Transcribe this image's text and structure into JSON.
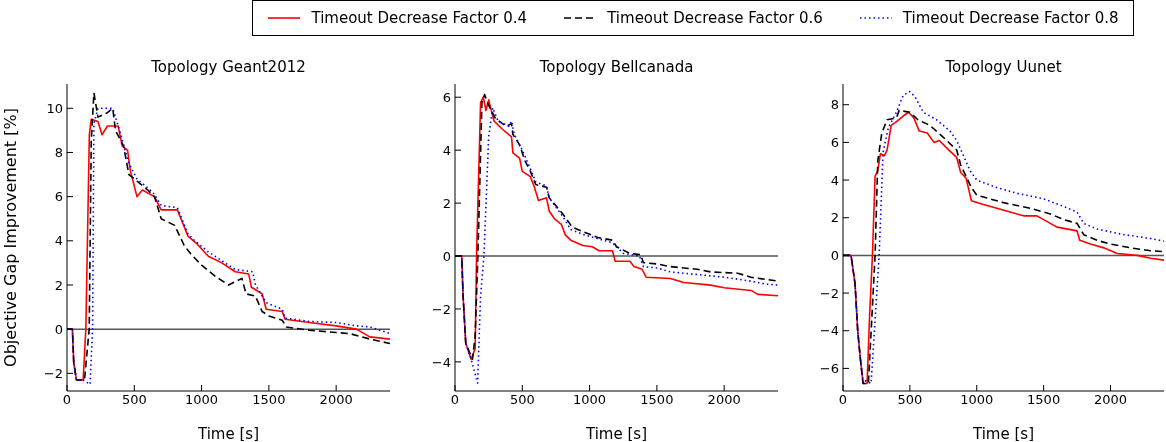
{
  "chart_data": [
    {
      "type": "line",
      "title": "Topology Geant2012",
      "xlabel": "Time [s]",
      "ylabel": "Objective Gap Improvement [%]",
      "xlim": [
        0,
        2400
      ],
      "xticks": [
        0,
        500,
        1000,
        1500,
        2000
      ],
      "ylim": [
        -2.8,
        11.1
      ],
      "yticks": [
        -2,
        0,
        2,
        4,
        6,
        8,
        10
      ],
      "legend": "top",
      "marker": "none",
      "ref_lines": [
        {
          "axis": "y",
          "value": 0,
          "color": "#555555"
        }
      ],
      "series": [
        {
          "name": "Timeout Decrease Factor 0.4",
          "color": "#ff0000",
          "line_style": "solid",
          "x": [
            0,
            40,
            50,
            70,
            120,
            140,
            166,
            180,
            230,
            260,
            300,
            380,
            410,
            450,
            470,
            520,
            560,
            650,
            700,
            820,
            900,
            960,
            1050,
            1150,
            1250,
            1350,
            1370,
            1450,
            1480,
            1600,
            1620,
            1800,
            2000,
            2150,
            2250,
            2400
          ],
          "values": [
            0,
            0,
            -1.5,
            -2.3,
            -2.3,
            0,
            8.8,
            9.5,
            9.4,
            8.8,
            9.2,
            9.2,
            8.3,
            8.1,
            7.2,
            6.0,
            6.3,
            6.0,
            5.4,
            5.4,
            4.2,
            3.9,
            3.3,
            3.0,
            2.6,
            2.5,
            1.9,
            1.6,
            0.9,
            0.8,
            0.45,
            0.3,
            0.15,
            0.0,
            -0.35,
            -0.45
          ]
        },
        {
          "name": "Timeout Decrease Factor 0.6",
          "color": "#000000",
          "line_style": "dashed",
          "x": [
            0,
            40,
            50,
            70,
            130,
            165,
            180,
            200,
            230,
            300,
            340,
            360,
            420,
            460,
            520,
            600,
            650,
            700,
            800,
            870,
            920,
            1000,
            1100,
            1200,
            1300,
            1330,
            1400,
            1450,
            1500,
            1600,
            1630,
            1800,
            2000,
            2100,
            2250,
            2400
          ],
          "values": [
            0,
            0,
            -1.5,
            -2.3,
            -2.3,
            0,
            8.5,
            10.7,
            9.6,
            9.8,
            10.0,
            9.0,
            8.3,
            7.0,
            6.7,
            6.3,
            6.0,
            5.0,
            4.7,
            3.8,
            3.4,
            2.9,
            2.4,
            2.0,
            2.3,
            1.6,
            1.5,
            0.8,
            0.6,
            0.4,
            0.1,
            -0.05,
            -0.15,
            -0.2,
            -0.45,
            -0.65
          ]
        },
        {
          "name": "Timeout Decrease Factor 0.8",
          "color": "#0000ff",
          "line_style": "dotted",
          "x": [
            0,
            40,
            50,
            70,
            120,
            171,
            190,
            200,
            230,
            340,
            400,
            460,
            520,
            600,
            650,
            700,
            820,
            900,
            950,
            1050,
            1150,
            1250,
            1380,
            1400,
            1480,
            1600,
            1620,
            1800,
            2000,
            2150,
            2250,
            2400
          ],
          "values": [
            0,
            0,
            -1.5,
            -2.3,
            -2.3,
            -2.5,
            0,
            9.3,
            10.0,
            10.0,
            8.8,
            7.5,
            6.8,
            6.4,
            6.1,
            5.6,
            5.5,
            4.3,
            4.0,
            3.5,
            3.1,
            2.7,
            2.6,
            2.0,
            1.2,
            0.9,
            0.5,
            0.35,
            0.3,
            0.15,
            0.1,
            -0.2
          ]
        }
      ]
    },
    {
      "type": "line",
      "title": "Topology Bellcanada",
      "xlabel": "Time [s]",
      "xlim": [
        0,
        2400
      ],
      "xticks": [
        0,
        500,
        1000,
        1500,
        2000
      ],
      "ylim": [
        -5.1,
        6.5
      ],
      "yticks": [
        -4,
        -2,
        0,
        2,
        4,
        6
      ],
      "marker": "none",
      "ref_lines": [
        {
          "axis": "y",
          "value": 0,
          "color": "#555555"
        }
      ],
      "series": [
        {
          "color": "#ff0000",
          "line_style": "solid",
          "x": [
            0,
            50,
            60,
            80,
            120,
            150,
            160,
            190,
            210,
            230,
            250,
            290,
            350,
            420,
            430,
            480,
            500,
            560,
            590,
            620,
            680,
            700,
            740,
            790,
            820,
            860,
            950,
            1020,
            1070,
            1170,
            1190,
            1300,
            1330,
            1390,
            1420,
            1600,
            1700,
            1900,
            2000,
            2200,
            2250,
            2400
          ],
          "values": [
            0,
            0,
            -1.5,
            -3.3,
            -3.9,
            -3.5,
            0,
            5.8,
            6.0,
            5.5,
            5.9,
            5.1,
            4.8,
            4.5,
            3.9,
            3.7,
            3.2,
            3.0,
            2.6,
            2.1,
            2.2,
            1.7,
            1.4,
            1.2,
            0.8,
            0.6,
            0.4,
            0.35,
            0.2,
            0.2,
            -0.2,
            -0.2,
            -0.4,
            -0.5,
            -0.8,
            -0.85,
            -1.0,
            -1.1,
            -1.2,
            -1.3,
            -1.45,
            -1.5
          ]
        },
        {
          "color": "#000000",
          "line_style": "dashed",
          "x": [
            0,
            50,
            60,
            80,
            130,
            150,
            170,
            200,
            220,
            240,
            300,
            380,
            420,
            430,
            480,
            520,
            560,
            600,
            680,
            700,
            800,
            870,
            960,
            1060,
            1170,
            1200,
            1300,
            1380,
            1400,
            1500,
            1600,
            1800,
            1900,
            2100,
            2200,
            2400
          ],
          "values": [
            0,
            0,
            -1.5,
            -3.3,
            -3.9,
            -3.0,
            0,
            5.8,
            6.1,
            5.8,
            5.2,
            4.9,
            5.0,
            4.6,
            4.2,
            3.6,
            3.2,
            2.7,
            2.6,
            2.2,
            1.6,
            1.1,
            0.9,
            0.7,
            0.6,
            0.35,
            0.1,
            0.05,
            -0.25,
            -0.3,
            -0.4,
            -0.5,
            -0.6,
            -0.65,
            -0.8,
            -0.95
          ]
        },
        {
          "color": "#0000ff",
          "line_style": "dotted",
          "x": [
            0,
            50,
            60,
            80,
            120,
            168,
            190,
            215,
            250,
            280,
            320,
            400,
            420,
            440,
            500,
            560,
            600,
            680,
            700,
            800,
            860,
            960,
            1100,
            1170,
            1250,
            1370,
            1400,
            1500,
            1600,
            1800,
            2000,
            2200,
            2300,
            2400
          ],
          "values": [
            0,
            0,
            -1.5,
            -3.3,
            -3.9,
            -4.8,
            -1.5,
            0,
            4.5,
            5.6,
            5.1,
            4.9,
            5.1,
            4.6,
            4.0,
            3.3,
            2.8,
            2.65,
            2.2,
            1.5,
            1.0,
            0.8,
            0.6,
            0.5,
            0.1,
            0.0,
            -0.4,
            -0.45,
            -0.6,
            -0.7,
            -0.8,
            -0.95,
            -1.05,
            -1.1
          ]
        }
      ]
    },
    {
      "type": "line",
      "title": "Topology Uunet",
      "xlabel": "Time [s]",
      "xlim": [
        0,
        2400
      ],
      "xticks": [
        0,
        500,
        1000,
        1500,
        2000
      ],
      "ylim": [
        -7.2,
        9.1
      ],
      "yticks": [
        -6,
        -4,
        -2,
        0,
        2,
        4,
        6,
        8
      ],
      "marker": "none",
      "ref_lines": [
        {
          "axis": "y",
          "value": 0,
          "color": "#555555"
        }
      ],
      "series": [
        {
          "color": "#ff0000",
          "line_style": "solid",
          "x": [
            0,
            60,
            90,
            110,
            130,
            150,
            180,
            200,
            220,
            240,
            260,
            280,
            310,
            330,
            360,
            400,
            450,
            490,
            530,
            570,
            630,
            680,
            720,
            790,
            850,
            880,
            920,
            960,
            1050,
            1150,
            1250,
            1350,
            1450,
            1550,
            1600,
            1750,
            1770,
            1850,
            1950,
            2050,
            2200,
            2300,
            2400
          ],
          "values": [
            0,
            0,
            -1.5,
            -4,
            -5.5,
            -6.8,
            -6.8,
            -3,
            0,
            4.2,
            4.5,
            5.4,
            5.3,
            5.6,
            6.9,
            7.1,
            7.4,
            7.6,
            7.3,
            6.6,
            6.5,
            6.0,
            6.1,
            5.6,
            5.2,
            4.4,
            4.1,
            2.9,
            2.7,
            2.5,
            2.3,
            2.1,
            2.1,
            1.7,
            1.5,
            1.3,
            0.8,
            0.6,
            0.4,
            0.1,
            0.0,
            -0.15,
            -0.25
          ]
        },
        {
          "color": "#000000",
          "line_style": "dashed",
          "x": [
            0,
            60,
            90,
            110,
            130,
            150,
            190,
            240,
            260,
            290,
            330,
            400,
            420,
            500,
            560,
            650,
            730,
            850,
            880,
            960,
            1000,
            1100,
            1200,
            1400,
            1550,
            1650,
            1750,
            1800,
            1900,
            2000,
            2150,
            2300,
            2400
          ],
          "values": [
            0,
            0,
            -1.5,
            -4,
            -5.5,
            -6.8,
            -6.8,
            0,
            5,
            6.5,
            7.2,
            7.3,
            7.7,
            7.6,
            7.2,
            6.9,
            6.4,
            5.6,
            4.8,
            3.6,
            3.2,
            3.0,
            2.8,
            2.5,
            2.2,
            1.9,
            1.7,
            1.1,
            0.8,
            0.6,
            0.4,
            0.25,
            0.2
          ]
        },
        {
          "color": "#0000ff",
          "line_style": "dotted",
          "x": [
            0,
            60,
            90,
            110,
            130,
            150,
            210,
            270,
            300,
            340,
            400,
            450,
            500,
            540,
            600,
            700,
            800,
            850,
            950,
            1000,
            1150,
            1300,
            1500,
            1650,
            1750,
            1800,
            1900,
            2100,
            2300,
            2400
          ],
          "values": [
            0,
            0,
            -1.5,
            -4,
            -5.5,
            -6.6,
            -6.8,
            0,
            5.5,
            6.8,
            7.6,
            8.5,
            8.7,
            8.4,
            7.6,
            7.2,
            6.6,
            6.1,
            4.5,
            4.0,
            3.6,
            3.3,
            3.0,
            2.6,
            2.3,
            1.7,
            1.4,
            1.1,
            0.9,
            0.75
          ]
        }
      ]
    }
  ]
}
